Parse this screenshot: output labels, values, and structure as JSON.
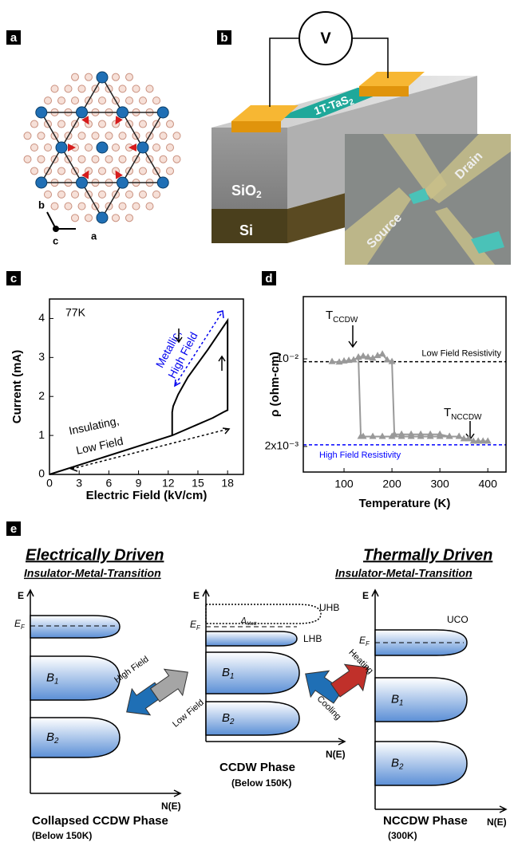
{
  "panel_labels": [
    "a",
    "b",
    "c",
    "d",
    "e"
  ],
  "panel_a": {
    "axes": [
      "b",
      "c",
      "a"
    ]
  },
  "panel_b": {
    "meter": "V",
    "channel": {
      "text": "1T-TaS",
      "sub": "2"
    },
    "oxide": {
      "text": "SiO",
      "sub": "2"
    },
    "substrate": "Si",
    "inset": [
      "Source",
      "Drain"
    ]
  },
  "chart_data": [
    {
      "type": "line",
      "xlabel": "Electric Field (kV/cm)",
      "ylabel": "Current (mA)",
      "xlim": [
        0,
        19.6
      ],
      "ylim": [
        0,
        4.5
      ],
      "xticks": [
        0,
        3,
        6,
        9,
        12,
        15,
        18
      ],
      "yticks": [
        0,
        1,
        2,
        3,
        4
      ],
      "series": [
        {
          "color": "#000000",
          "x": [
            0,
            12.4,
            16.5,
            17.6,
            18,
            18,
            16,
            14,
            13,
            12.5,
            12.4,
            12.4
          ],
          "values": [
            0,
            1.0,
            1.45,
            1.6,
            1.65,
            3.95,
            3.2,
            2.5,
            2.05,
            1.75,
            1.6,
            1.0
          ]
        }
      ],
      "annotations": [
        "77K",
        "Metallic,",
        "High Field",
        "Insulating,",
        "Low Field"
      ]
    },
    {
      "type": "line",
      "log_y": true,
      "marker": "triangle",
      "xlabel": "Temperature (K)",
      "ylabel": "ρ (ohm-cm)",
      "xlim": [
        15,
        438
      ],
      "ylim": [
        0.00125,
        0.0314
      ],
      "xticks": [
        100,
        200,
        300,
        400
      ],
      "yticks": [
        {
          "value": 0.01,
          "label": "10⁻²"
        },
        {
          "value": 0.002,
          "label": "2x10⁻³"
        }
      ],
      "series": [
        {
          "color": "#999999",
          "x": [
            75,
            90,
            100,
            110,
            120,
            130,
            140,
            150,
            160,
            170,
            180,
            190,
            200,
            205,
            220,
            240,
            260,
            280,
            300,
            320,
            340,
            350,
            360,
            370,
            380,
            390,
            400
          ],
          "values": [
            0.0095,
            0.0094,
            0.0096,
            0.0097,
            0.0098,
            0.0103,
            0.0105,
            0.0103,
            0.0101,
            0.0106,
            0.0109,
            0.0098,
            0.0095,
            0.0025,
            0.0025,
            0.0025,
            0.0025,
            0.0025,
            0.0025,
            0.0024,
            0.0024,
            0.0023,
            0.0023,
            0.0022,
            0.0022,
            0.0022,
            0.0022
          ]
        },
        {
          "color": "#999999",
          "x": [
            130,
            135,
            140,
            160,
            180,
            200,
            220,
            240,
            260,
            280,
            300,
            320,
            340
          ],
          "values": [
            0.0103,
            0.0024,
            0.0024,
            0.0024,
            0.0024,
            0.0024,
            0.0024,
            0.0024,
            0.0024,
            0.0024,
            0.0024,
            0.0024,
            0.0024
          ]
        }
      ],
      "reference_lines": [
        {
          "label": "Low Field Resistivity",
          "value": 0.0095,
          "color": "#000000"
        },
        {
          "label": "High Field Resistivity",
          "value": 0.00206,
          "color": "#0000ff"
        }
      ],
      "annotations": [
        {
          "text": "T",
          "sub": "CCDW"
        },
        {
          "text": "T",
          "sub": "NCCDW"
        }
      ]
    }
  ],
  "panel_e": {
    "left": {
      "title": "Electrically Driven",
      "subtitle": "Insulator-Metal-Transition"
    },
    "right": {
      "title": "Thermally Driven",
      "subtitle": "Insulator-Metal-Transition"
    },
    "diagrams": [
      {
        "energy_axis": "E",
        "fermi": {
          "text": "E",
          "sub": "F"
        },
        "dos_axis": "N(E)",
        "bands": [
          {
            "text": "B",
            "sub": "1"
          },
          {
            "text": "B",
            "sub": "2"
          }
        ],
        "phase": "Collapsed CCDW Phase",
        "condition": "(Below 150K)"
      },
      {
        "energy_axis": "E",
        "fermi": {
          "text": "E",
          "sub": "F"
        },
        "dos_axis": "N(E)",
        "bands": [
          {
            "text": "B",
            "sub": "1"
          },
          {
            "text": "B",
            "sub": "2"
          }
        ],
        "upper": "UHB",
        "gap": {
          "text": "Δ",
          "sub": "Mott"
        },
        "lower": "LHB",
        "phase": "CCDW Phase",
        "condition": "(Below 150K)"
      },
      {
        "energy_axis": "E",
        "fermi": {
          "text": "E",
          "sub": "F"
        },
        "dos_axis": "N(E)",
        "bands": [
          {
            "text": "B",
            "sub": "1"
          },
          {
            "text": "B",
            "sub": "2"
          }
        ],
        "upper": "UCO",
        "phase": "NCCDW Phase",
        "condition": "(300K)"
      }
    ],
    "transitions": [
      {
        "forward": "High Field",
        "backward": "Low Field"
      },
      {
        "forward": "Heating",
        "backward": "Cooling"
      }
    ]
  }
}
